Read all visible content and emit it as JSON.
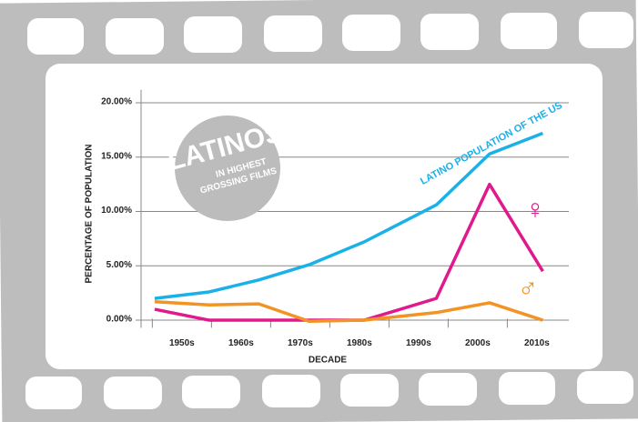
{
  "chart_data": {
    "type": "line",
    "badge_title": "LATINOS",
    "badge_lines": [
      "IN HIGHEST",
      "GROSSING FILMS"
    ],
    "y_label": "PERCENTAGE OF POPULATION",
    "x_label": "DECADE",
    "x": [
      1945.4,
      1954.6,
      1963,
      1971.5,
      1980.8,
      1993,
      2002,
      2011
    ],
    "xlim": [
      1943.1,
      2015.4
    ],
    "xticks": [
      {
        "value": 1950,
        "label": "1950s"
      },
      {
        "value": 1960,
        "label": "1960s"
      },
      {
        "value": 1970,
        "label": "1970s"
      },
      {
        "value": 1980,
        "label": "1980s"
      },
      {
        "value": 1990,
        "label": "1990s"
      },
      {
        "value": 2000,
        "label": "2000s"
      },
      {
        "value": 2010,
        "label": "2010s"
      }
    ],
    "ylim": [
      -0.7,
      21.2
    ],
    "yticks": [
      {
        "value": 0,
        "label": "0.00%"
      },
      {
        "value": 5,
        "label": "5.00%"
      },
      {
        "value": 10,
        "label": "10.00%"
      },
      {
        "value": 15,
        "label": "15.00%"
      },
      {
        "value": 20,
        "label": "20.00%"
      }
    ],
    "grid": true,
    "series": [
      {
        "name": "LATINO POPULATION OF THE US",
        "color": "#1ab0e8",
        "values": [
          2.0,
          2.6,
          3.7,
          5.1,
          7.2,
          10.6,
          15.3,
          17.2
        ]
      },
      {
        "name": "♀",
        "color": "#e0198c",
        "values": [
          1.0,
          0.0,
          0.0,
          0.0,
          0.0,
          2.0,
          12.5,
          4.5
        ]
      },
      {
        "name": "♂",
        "color": "#f39323",
        "values": [
          1.7,
          1.4,
          1.5,
          -0.1,
          0.0,
          0.7,
          1.6,
          0.0
        ]
      }
    ]
  }
}
